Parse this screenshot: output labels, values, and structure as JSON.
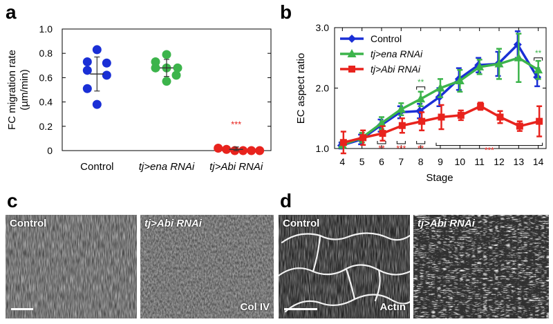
{
  "panels": {
    "a": "a",
    "b": "b",
    "c": "c",
    "d": "d"
  },
  "chart_data": [
    {
      "type": "scatter",
      "title": "",
      "ylabel": "FC migration rate (µm/min)",
      "ylabel_line1": "FC migration rate",
      "ylabel_line2": "(µm/min)",
      "ylim": [
        0,
        1.0
      ],
      "yticks": [
        "0",
        "0.2",
        "0.4",
        "0.6",
        "0.8",
        "1.0"
      ],
      "categories": [
        "Control",
        "tj>ena RNAi",
        "tj>Abi RNAi"
      ],
      "colors": [
        "#1a2fd6",
        "#3cb44b",
        "#e8231d"
      ],
      "series": [
        {
          "name": "Control",
          "values": [
            0.83,
            0.73,
            0.72,
            0.66,
            0.62,
            0.51,
            0.38
          ],
          "mean": 0.63,
          "sd": 0.14
        },
        {
          "name": "tj>ena RNAi",
          "values": [
            0.79,
            0.73,
            0.68,
            0.68,
            0.68,
            0.62,
            0.57
          ],
          "mean": 0.68,
          "sd": 0.07
        },
        {
          "name": "tj>Abi RNAi",
          "values": [
            0.02,
            0.01,
            0.0,
            0.0,
            0.0,
            0.0
          ],
          "mean": 0.01,
          "sd": 0.02
        }
      ],
      "annotations": [
        {
          "text": "***",
          "category": "tj>Abi RNAi",
          "y": 0.19,
          "color": "#e8231d"
        }
      ]
    },
    {
      "type": "line",
      "title": "",
      "xlabel": "Stage",
      "ylabel": "EC aspect ratio",
      "x": [
        4,
        5,
        6,
        7,
        8,
        9,
        10,
        11,
        12,
        13,
        14
      ],
      "xlim": [
        3.6,
        14.4
      ],
      "ylim": [
        1.0,
        3.0
      ],
      "yticks": [
        "1.0",
        "2.0",
        "3.0"
      ],
      "legend_position": "top-left",
      "series": [
        {
          "name": "Control",
          "color": "#1a2fd6",
          "marker": "diamond",
          "values": [
            1.05,
            1.15,
            1.38,
            1.6,
            1.62,
            1.85,
            2.15,
            2.38,
            2.4,
            2.72,
            2.18
          ],
          "err": [
            0.05,
            0.08,
            0.1,
            0.1,
            0.12,
            0.15,
            0.18,
            0.12,
            0.2,
            0.22,
            0.15
          ]
        },
        {
          "name": "tj>ena RNAi",
          "color": "#3cb44b",
          "marker": "triangle",
          "values": [
            1.06,
            1.18,
            1.42,
            1.65,
            1.82,
            2.0,
            2.12,
            2.35,
            2.4,
            2.5,
            2.3
          ],
          "err": [
            0.05,
            0.08,
            0.1,
            0.1,
            0.12,
            0.15,
            0.18,
            0.12,
            0.25,
            0.4,
            0.15
          ]
        },
        {
          "name": "tj>Abi RNAi",
          "color": "#e8231d",
          "marker": "square",
          "values": [
            1.1,
            1.18,
            1.25,
            1.38,
            1.45,
            1.52,
            1.55,
            1.7,
            1.52,
            1.37,
            1.45
          ],
          "err": [
            0.18,
            0.12,
            0.12,
            0.12,
            0.15,
            0.2,
            0.08,
            0.06,
            0.1,
            0.08,
            0.25
          ]
        }
      ],
      "significance": [
        {
          "text": "**",
          "from": 6,
          "to": 6,
          "color": "#e8231d",
          "side": "below"
        },
        {
          "text": "***",
          "from": 7,
          "to": 7,
          "color": "#e8231d",
          "side": "below"
        },
        {
          "text": "**",
          "from": 8,
          "to": 8,
          "color": "#e8231d",
          "side": "below"
        },
        {
          "text": "***",
          "from": 9,
          "to": 14,
          "color": "#e8231d",
          "side": "below"
        },
        {
          "text": "**",
          "from": 8,
          "to": 8,
          "color": "#3cb44b",
          "side": "above"
        },
        {
          "text": "**",
          "from": 14,
          "to": 14,
          "color": "#3cb44b",
          "side": "above"
        }
      ]
    }
  ],
  "micrographs": {
    "c_left_label": "Control",
    "c_right_label": "tj>Abi RNAi",
    "c_stain": "Col IV",
    "d_left_label": "Control",
    "d_right_label": "tj>Abi RNAi",
    "d_stain": "Actin"
  }
}
